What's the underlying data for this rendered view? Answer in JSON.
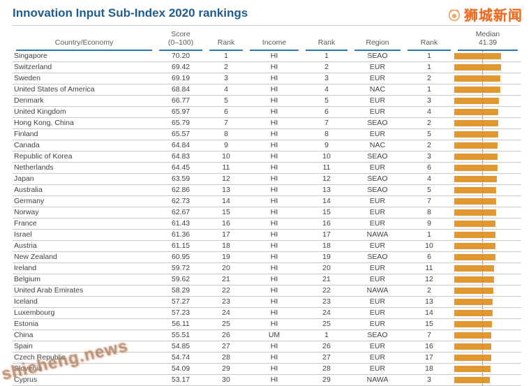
{
  "title": "Innovation Input Sub-Index 2020 rankings",
  "watermarks": {
    "brand": "狮城新闻",
    "diagonal": "shicheng.news"
  },
  "colors": {
    "title_blue": "#1F5C8E",
    "header_underline_blue": "#2E75B6",
    "bar_orange": "#E2992F",
    "watermark_orange": "#EE6A1E"
  },
  "table": {
    "columns": [
      {
        "label": "Country/Economy",
        "sub": ""
      },
      {
        "label": "Score",
        "sub": "(0–100)"
      },
      {
        "label": "Rank",
        "sub": ""
      },
      {
        "label": "Income",
        "sub": ""
      },
      {
        "label": "Rank",
        "sub": ""
      },
      {
        "label": "Region",
        "sub": ""
      },
      {
        "label": "Rank",
        "sub": ""
      },
      {
        "label": "Median",
        "sub": "41.39"
      }
    ],
    "rows": [
      {
        "country": "Singapore",
        "score": "70.20",
        "rank": "1",
        "income": "HI",
        "income_rank": "1",
        "region": "SEAO",
        "region_rank": "1"
      },
      {
        "country": "Switzerland",
        "score": "69.42",
        "rank": "2",
        "income": "HI",
        "income_rank": "2",
        "region": "EUR",
        "region_rank": "1"
      },
      {
        "country": "Sweden",
        "score": "69.19",
        "rank": "3",
        "income": "HI",
        "income_rank": "3",
        "region": "EUR",
        "region_rank": "2"
      },
      {
        "country": "United States of America",
        "score": "68.84",
        "rank": "4",
        "income": "HI",
        "income_rank": "4",
        "region": "NAC",
        "region_rank": "1"
      },
      {
        "country": "Denmark",
        "score": "66.77",
        "rank": "5",
        "income": "HI",
        "income_rank": "5",
        "region": "EUR",
        "region_rank": "3"
      },
      {
        "country": "United Kingdom",
        "score": "65.97",
        "rank": "6",
        "income": "HI",
        "income_rank": "6",
        "region": "EUR",
        "region_rank": "4"
      },
      {
        "country": "Hong Kong, China",
        "score": "65.79",
        "rank": "7",
        "income": "HI",
        "income_rank": "7",
        "region": "SEAO",
        "region_rank": "2"
      },
      {
        "country": "Finland",
        "score": "65.57",
        "rank": "8",
        "income": "HI",
        "income_rank": "8",
        "region": "EUR",
        "region_rank": "5"
      },
      {
        "country": "Canada",
        "score": "64.84",
        "rank": "9",
        "income": "HI",
        "income_rank": "9",
        "region": "NAC",
        "region_rank": "2"
      },
      {
        "country": "Republic of Korea",
        "score": "64.83",
        "rank": "10",
        "income": "HI",
        "income_rank": "10",
        "region": "SEAO",
        "region_rank": "3"
      },
      {
        "country": "Netherlands",
        "score": "64.45",
        "rank": "11",
        "income": "HI",
        "income_rank": "11",
        "region": "EUR",
        "region_rank": "6"
      },
      {
        "country": "Japan",
        "score": "63.59",
        "rank": "12",
        "income": "HI",
        "income_rank": "12",
        "region": "SEAO",
        "region_rank": "4"
      },
      {
        "country": "Australia",
        "score": "62.86",
        "rank": "13",
        "income": "HI",
        "income_rank": "13",
        "region": "SEAO",
        "region_rank": "5"
      },
      {
        "country": "Germany",
        "score": "62.73",
        "rank": "14",
        "income": "HI",
        "income_rank": "14",
        "region": "EUR",
        "region_rank": "7"
      },
      {
        "country": "Norway",
        "score": "62.67",
        "rank": "15",
        "income": "HI",
        "income_rank": "15",
        "region": "EUR",
        "region_rank": "8"
      },
      {
        "country": "France",
        "score": "61.43",
        "rank": "16",
        "income": "HI",
        "income_rank": "16",
        "region": "EUR",
        "region_rank": "9"
      },
      {
        "country": "Israel",
        "score": "61.36",
        "rank": "17",
        "income": "HI",
        "income_rank": "17",
        "region": "NAWA",
        "region_rank": "1"
      },
      {
        "country": "Austria",
        "score": "61.15",
        "rank": "18",
        "income": "HI",
        "income_rank": "18",
        "region": "EUR",
        "region_rank": "10"
      },
      {
        "country": "New Zealand",
        "score": "60.95",
        "rank": "19",
        "income": "HI",
        "income_rank": "19",
        "region": "SEAO",
        "region_rank": "6"
      },
      {
        "country": "Ireland",
        "score": "59.72",
        "rank": "20",
        "income": "HI",
        "income_rank": "20",
        "region": "EUR",
        "region_rank": "11"
      },
      {
        "country": "Belgium",
        "score": "59.62",
        "rank": "21",
        "income": "HI",
        "income_rank": "21",
        "region": "EUR",
        "region_rank": "12"
      },
      {
        "country": "United Arab Emirates",
        "score": "58.29",
        "rank": "22",
        "income": "HI",
        "income_rank": "22",
        "region": "NAWA",
        "region_rank": "2"
      },
      {
        "country": "Iceland",
        "score": "57.27",
        "rank": "23",
        "income": "HI",
        "income_rank": "23",
        "region": "EUR",
        "region_rank": "13"
      },
      {
        "country": "Luxembourg",
        "score": "57.23",
        "rank": "24",
        "income": "HI",
        "income_rank": "24",
        "region": "EUR",
        "region_rank": "14"
      },
      {
        "country": "Estonia",
        "score": "56.11",
        "rank": "25",
        "income": "HI",
        "income_rank": "25",
        "region": "EUR",
        "region_rank": "15"
      },
      {
        "country": "China",
        "score": "55.51",
        "rank": "26",
        "income": "UM",
        "income_rank": "1",
        "region": "SEAO",
        "region_rank": "7"
      },
      {
        "country": "Spain",
        "score": "54.85",
        "rank": "27",
        "income": "HI",
        "income_rank": "26",
        "region": "EUR",
        "region_rank": "16"
      },
      {
        "country": "Czech Republic",
        "score": "54.74",
        "rank": "28",
        "income": "HI",
        "income_rank": "27",
        "region": "EUR",
        "region_rank": "17"
      },
      {
        "country": "Slovenia",
        "score": "54.09",
        "rank": "29",
        "income": "HI",
        "income_rank": "28",
        "region": "EUR",
        "region_rank": "18"
      },
      {
        "country": "Cyprus",
        "score": "53.17",
        "rank": "30",
        "income": "HI",
        "income_rank": "29",
        "region": "NAWA",
        "region_rank": "3"
      }
    ]
  },
  "chart_data": {
    "type": "bar",
    "orientation": "horizontal",
    "title": "Innovation Input Sub-Index 2020 rankings",
    "categories": [
      "Singapore",
      "Switzerland",
      "Sweden",
      "United States of America",
      "Denmark",
      "United Kingdom",
      "Hong Kong, China",
      "Finland",
      "Canada",
      "Republic of Korea",
      "Netherlands",
      "Japan",
      "Australia",
      "Germany",
      "Norway",
      "France",
      "Israel",
      "Austria",
      "New Zealand",
      "Ireland",
      "Belgium",
      "United Arab Emirates",
      "Iceland",
      "Luxembourg",
      "Estonia",
      "China",
      "Spain",
      "Czech Republic",
      "Slovenia",
      "Cyprus"
    ],
    "values": [
      70.2,
      69.42,
      69.19,
      68.84,
      66.77,
      65.97,
      65.79,
      65.57,
      64.84,
      64.83,
      64.45,
      63.59,
      62.86,
      62.73,
      62.67,
      61.43,
      61.36,
      61.15,
      60.95,
      59.72,
      59.62,
      58.29,
      57.27,
      57.23,
      56.11,
      55.51,
      54.85,
      54.74,
      54.09,
      53.17
    ],
    "median": 41.39,
    "median_label": "Median 41.39",
    "xlim": [
      0,
      100
    ],
    "bar_color": "#E2992F",
    "gridlines": false,
    "legend": false
  }
}
